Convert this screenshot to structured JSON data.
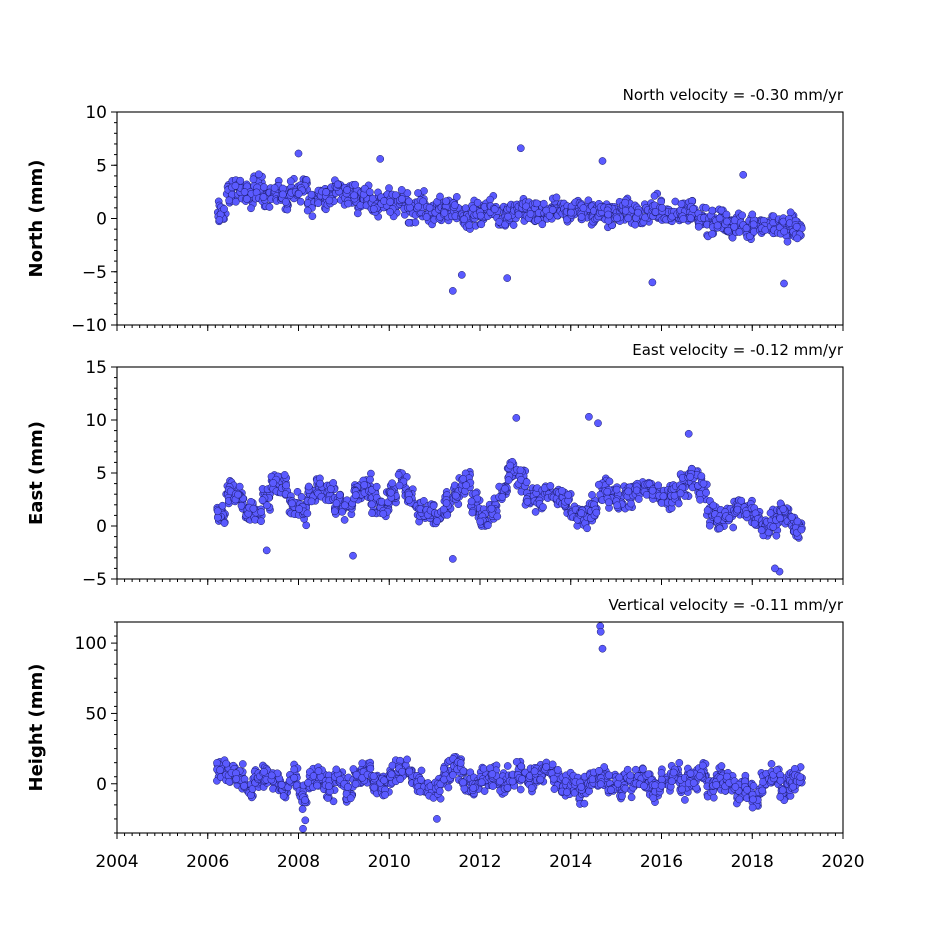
{
  "chart_data": {
    "type": "scatter",
    "x_ticks": [
      2004,
      2006,
      2008,
      2010,
      2012,
      2014,
      2016,
      2018,
      2020
    ],
    "x_tick_labels": [
      "2004",
      "2006",
      "2008",
      "2010",
      "2012",
      "2014",
      "2016",
      "2018",
      "2020"
    ],
    "xlim": [
      2004,
      2020
    ],
    "marker_color": "#5a5aff",
    "marker_edge_color": "#1a1a66",
    "panels": [
      {
        "id": "north",
        "title": "North velocity = -0.30 mm/yr",
        "ylabel": "North (mm)",
        "ylim": [
          -10,
          10
        ],
        "y_ticks": [
          -10,
          -5,
          0,
          5,
          10
        ],
        "y_tick_labels": [
          "−10",
          "−5",
          "0",
          "5",
          "10"
        ],
        "velocity_mm_per_yr": -0.3,
        "series": [
          {
            "x": [
              2006.3,
              2006.5,
              2006.7,
              2006.9,
              2007.1,
              2007.3,
              2007.5,
              2007.7,
              2007.9,
              2008.1,
              2008.3,
              2008.5,
              2008.7,
              2008.9,
              2009.1,
              2009.3,
              2009.5,
              2009.7,
              2009.9,
              2010.1,
              2010.3,
              2010.5,
              2010.7,
              2010.9,
              2011.1,
              2011.3,
              2011.5,
              2011.7,
              2011.9,
              2012.1,
              2012.3,
              2012.5,
              2012.7,
              2012.9,
              2013.1,
              2013.3,
              2013.5,
              2013.7,
              2013.9,
              2014.1,
              2014.3,
              2014.5,
              2014.7,
              2014.9,
              2015.1,
              2015.3,
              2015.5,
              2015.7,
              2015.9,
              2016.1,
              2016.3,
              2016.5,
              2016.7,
              2016.9,
              2017.1,
              2017.3,
              2017.5,
              2017.7,
              2017.9,
              2018.1,
              2018.3,
              2018.5,
              2018.7,
              2018.9,
              2019.0,
              2008.0,
              2009.8,
              2012.9,
              2014.7,
              2011.4,
              2011.6,
              2012.6,
              2015.8,
              2018.7,
              2017.8
            ],
            "y": [
              0.5,
              2.3,
              2.8,
              2.1,
              3.0,
              2.2,
              2.5,
              1.8,
              2.4,
              2.9,
              1.6,
              2.2,
              2.0,
              2.7,
              2.3,
              1.9,
              2.1,
              1.5,
              1.8,
              1.2,
              1.6,
              0.8,
              1.3,
              0.6,
              1.0,
              0.4,
              0.9,
              0.2,
              0.5,
              0.3,
              0.7,
              0.1,
              0.4,
              0.6,
              0.8,
              0.2,
              0.5,
              0.9,
              0.3,
              1.1,
              0.6,
              0.4,
              0.8,
              0.2,
              0.5,
              0.7,
              0.3,
              0.6,
              0.9,
              0.4,
              0.2,
              0.6,
              0.8,
              0.3,
              -0.5,
              -0.2,
              -0.8,
              -0.4,
              -0.9,
              -0.3,
              -0.7,
              -0.5,
              -1.0,
              -0.6,
              -1.2,
              6.1,
              5.6,
              6.6,
              5.4,
              -6.8,
              -5.3,
              -5.6,
              -6.0,
              -6.1,
              4.1
            ]
          }
        ]
      },
      {
        "id": "east",
        "title": "East velocity = -0.12 mm/yr",
        "ylabel": "East (mm)",
        "ylim": [
          -5,
          15
        ],
        "y_ticks": [
          -5,
          0,
          5,
          10,
          15
        ],
        "y_tick_labels": [
          "−5",
          "0",
          "5",
          "10",
          "15"
        ],
        "velocity_mm_per_yr": -0.12,
        "series": [
          {
            "x": [
              2006.3,
              2006.5,
              2006.7,
              2006.9,
              2007.1,
              2007.3,
              2007.5,
              2007.7,
              2007.9,
              2008.1,
              2008.3,
              2008.5,
              2008.7,
              2008.9,
              2009.1,
              2009.3,
              2009.5,
              2009.7,
              2009.9,
              2010.1,
              2010.3,
              2010.5,
              2010.7,
              2010.9,
              2011.1,
              2011.3,
              2011.5,
              2011.7,
              2011.9,
              2012.1,
              2012.3,
              2012.5,
              2012.7,
              2012.9,
              2013.1,
              2013.3,
              2013.5,
              2013.7,
              2013.9,
              2014.1,
              2014.3,
              2014.5,
              2014.7,
              2014.9,
              2015.1,
              2015.3,
              2015.5,
              2015.7,
              2015.9,
              2016.1,
              2016.3,
              2016.5,
              2016.7,
              2016.9,
              2017.1,
              2017.3,
              2017.5,
              2017.7,
              2017.9,
              2018.1,
              2018.3,
              2018.5,
              2018.7,
              2018.9,
              2019.0,
              2012.8,
              2014.4,
              2014.6,
              2016.6,
              2011.4,
              2009.2,
              2007.3,
              2018.6,
              2018.5
            ],
            "y": [
              1.0,
              3.2,
              2.5,
              1.5,
              1.2,
              2.8,
              4.0,
              3.5,
              2.0,
              1.5,
              2.9,
              3.8,
              3.2,
              2.1,
              1.8,
              3.0,
              3.6,
              2.4,
              1.9,
              3.2,
              3.8,
              2.5,
              1.6,
              1.2,
              1.0,
              2.0,
              3.5,
              4.2,
              2.0,
              0.8,
              1.8,
              3.2,
              5.2,
              4.5,
              3.0,
              2.5,
              3.2,
              2.8,
              2.0,
              1.2,
              0.8,
              1.5,
              3.5,
              3.0,
              2.4,
              2.8,
              3.2,
              3.6,
              3.0,
              2.5,
              3.0,
              3.8,
              4.8,
              3.5,
              1.2,
              0.5,
              0.8,
              1.8,
              1.5,
              0.8,
              -0.2,
              0.5,
              1.5,
              0.2,
              -0.5,
              10.2,
              10.3,
              9.7,
              8.7,
              -3.1,
              -2.8,
              -2.3,
              -4.3,
              -4.0
            ]
          }
        ]
      },
      {
        "id": "height",
        "title": "Vertical velocity = -0.11 mm/yr",
        "ylabel": "Height (mm)",
        "ylim": [
          -35,
          115
        ],
        "y_ticks": [
          0,
          50,
          100
        ],
        "y_tick_labels": [
          "0",
          "50",
          "100"
        ],
        "velocity_mm_per_yr": -0.11,
        "series": [
          {
            "x": [
              2006.3,
              2006.5,
              2006.7,
              2006.9,
              2007.1,
              2007.3,
              2007.5,
              2007.7,
              2007.9,
              2008.1,
              2008.3,
              2008.5,
              2008.7,
              2008.9,
              2009.1,
              2009.3,
              2009.5,
              2009.7,
              2009.9,
              2010.1,
              2010.3,
              2010.5,
              2010.7,
              2010.9,
              2011.1,
              2011.3,
              2011.5,
              2011.7,
              2011.9,
              2012.1,
              2012.3,
              2012.5,
              2012.7,
              2012.9,
              2013.1,
              2013.3,
              2013.5,
              2013.7,
              2013.9,
              2014.1,
              2014.3,
              2014.5,
              2014.7,
              2014.9,
              2015.1,
              2015.3,
              2015.5,
              2015.7,
              2015.9,
              2016.1,
              2016.3,
              2016.5,
              2016.7,
              2016.9,
              2017.1,
              2017.3,
              2017.5,
              2017.7,
              2017.9,
              2018.1,
              2018.3,
              2018.5,
              2018.7,
              2018.9,
              2019.0,
              2014.65,
              2014.66,
              2014.7,
              2008.1,
              2008.15,
              2011.05
            ],
            "y": [
              10,
              8,
              4,
              -2,
              2,
              5,
              1,
              -3,
              6,
              -8,
              2,
              4,
              -4,
              3,
              -6,
              5,
              8,
              2,
              -1,
              6,
              10,
              4,
              0,
              -5,
              -2,
              8,
              12,
              3,
              -2,
              4,
              5,
              0,
              2,
              6,
              4,
              8,
              10,
              3,
              0,
              -2,
              -4,
              2,
              5,
              -1,
              -3,
              2,
              4,
              0,
              -4,
              2,
              5,
              0,
              3,
              8,
              -2,
              4,
              0,
              -6,
              -3,
              -10,
              2,
              6,
              -4,
              0,
              2,
              112,
              108,
              96,
              -32,
              -26,
              -25
            ]
          }
        ]
      }
    ]
  }
}
